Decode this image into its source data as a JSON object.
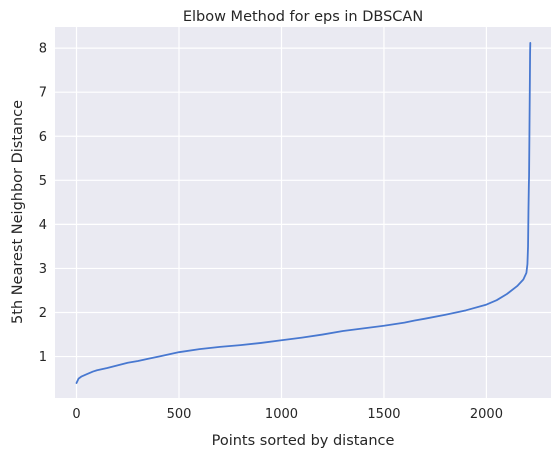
{
  "chart_data": {
    "type": "line",
    "title": "Elbow Method for eps in DBSCAN",
    "xlabel": "Points sorted by distance",
    "ylabel": "5th Nearest Neighbor Distance",
    "xlim": [
      -105,
      2315
    ],
    "ylim": [
      0.06,
      8.48
    ],
    "xticks": [
      0,
      500,
      1000,
      1500,
      2000
    ],
    "yticks": [
      1,
      2,
      3,
      4,
      5,
      6,
      7,
      8
    ],
    "grid": true,
    "series": [
      {
        "color": "#4878d0",
        "x": [
          0,
          10,
          25,
          50,
          80,
          100,
          150,
          200,
          250,
          300,
          350,
          400,
          450,
          500,
          600,
          700,
          800,
          900,
          1000,
          1100,
          1200,
          1300,
          1400,
          1500,
          1600,
          1650,
          1700,
          1800,
          1900,
          2000,
          2050,
          2100,
          2150,
          2180,
          2195,
          2200,
          2203,
          2205,
          2207,
          2208,
          2210,
          2212,
          2213,
          2214
        ],
        "y": [
          0.4,
          0.5,
          0.55,
          0.6,
          0.66,
          0.69,
          0.74,
          0.8,
          0.86,
          0.9,
          0.95,
          1.0,
          1.05,
          1.1,
          1.17,
          1.22,
          1.26,
          1.31,
          1.37,
          1.43,
          1.5,
          1.58,
          1.64,
          1.7,
          1.77,
          1.82,
          1.86,
          1.95,
          2.05,
          2.18,
          2.28,
          2.42,
          2.6,
          2.75,
          2.9,
          3.1,
          3.5,
          4.3,
          4.9,
          5.1,
          6.2,
          7.3,
          7.9,
          8.12
        ]
      }
    ]
  }
}
